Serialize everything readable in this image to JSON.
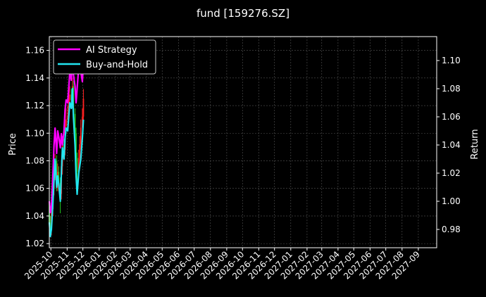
{
  "chart_data": {
    "type": "line",
    "title": "fund [159276.SZ]",
    "ylabel_left": "Price",
    "ylabel_right": "Return",
    "x_ticks": [
      "2025-10",
      "2025-11",
      "2025-12",
      "2026-01",
      "2026-02",
      "2026-03",
      "2026-04",
      "2026-05",
      "2026-06",
      "2026-07",
      "2026-08",
      "2026-09",
      "2026-10",
      "2026-11",
      "2026-12",
      "2027-01",
      "2027-02",
      "2027-03",
      "2027-04",
      "2027-05",
      "2027-06",
      "2027-07",
      "2027-08",
      "2027-09"
    ],
    "y_left_ticks": [
      "1.02",
      "1.04",
      "1.06",
      "1.08",
      "1.10",
      "1.12",
      "1.14",
      "1.16"
    ],
    "y_right_ticks": [
      "0.98",
      "1.00",
      "1.02",
      "1.04",
      "1.06",
      "1.08",
      "1.10"
    ],
    "ylim_left": [
      1.017,
      1.17
    ],
    "ylim_right": [
      0.967,
      1.117
    ],
    "xlim": [
      "2025-09-28",
      "2027-10-06"
    ],
    "grid": true,
    "legend_position": "upper-left",
    "colors": {
      "ai_strategy": "#ff00ff",
      "buy_and_hold": "#22e5f0",
      "up_candle": "#ff2020",
      "down_candle": "#22c722",
      "grid": "#555555"
    },
    "series": [
      {
        "name": "AI Strategy",
        "axis": "right",
        "color": "#ff00ff",
        "x": [
          "2025-09-28",
          "2025-09-30",
          "2025-10-02",
          "2025-10-05",
          "2025-10-07",
          "2025-10-09",
          "2025-10-12",
          "2025-10-14",
          "2025-10-16",
          "2025-10-19",
          "2025-10-21",
          "2025-10-23",
          "2025-10-26",
          "2025-10-28",
          "2025-10-30",
          "2025-11-02",
          "2025-11-04",
          "2025-11-06",
          "2025-11-09",
          "2025-11-11",
          "2025-11-13",
          "2025-11-16",
          "2025-11-18",
          "2025-11-20",
          "2025-11-23",
          "2025-11-25",
          "2025-11-27",
          "2025-11-30",
          "2025-12-02"
        ],
        "values": [
          1.0,
          0.992,
          0.996,
          1.02,
          1.04,
          1.052,
          1.034,
          1.05,
          1.046,
          1.038,
          1.048,
          1.04,
          1.05,
          1.065,
          1.072,
          1.07,
          1.08,
          1.092,
          1.086,
          1.1,
          1.09,
          1.082,
          1.07,
          1.08,
          1.095,
          1.098,
          1.092,
          1.085,
          1.098
        ]
      },
      {
        "name": "Buy-and-Hold",
        "axis": "right",
        "color": "#22e5f0",
        "x": [
          "2025-09-28",
          "2025-09-30",
          "2025-10-02",
          "2025-10-05",
          "2025-10-07",
          "2025-10-09",
          "2025-10-12",
          "2025-10-14",
          "2025-10-16",
          "2025-10-19",
          "2025-10-21",
          "2025-10-23",
          "2025-10-26",
          "2025-10-28",
          "2025-10-30",
          "2025-11-02",
          "2025-11-04",
          "2025-11-06",
          "2025-11-09",
          "2025-11-11",
          "2025-11-13",
          "2025-11-16",
          "2025-11-18",
          "2025-11-20",
          "2025-11-23",
          "2025-11-25",
          "2025-11-27",
          "2025-11-30",
          "2025-12-02"
        ],
        "values": [
          0.985,
          0.975,
          0.98,
          1.0,
          1.015,
          1.03,
          1.01,
          1.018,
          1.012,
          1.0,
          1.02,
          1.038,
          1.03,
          1.045,
          1.052,
          1.05,
          1.06,
          1.07,
          1.066,
          1.08,
          1.06,
          1.04,
          1.018,
          1.005,
          1.02,
          1.025,
          1.03,
          1.045,
          1.058
        ]
      }
    ],
    "candles": {
      "axis": "left",
      "x": [
        "2025-09-28",
        "2025-09-30",
        "2025-10-02",
        "2025-10-05",
        "2025-10-07",
        "2025-10-09",
        "2025-10-12",
        "2025-10-14",
        "2025-10-16",
        "2025-10-19",
        "2025-10-21",
        "2025-10-23",
        "2025-10-26",
        "2025-10-28",
        "2025-10-30",
        "2025-11-02",
        "2025-11-04",
        "2025-11-06",
        "2025-11-09",
        "2025-11-11",
        "2025-11-13",
        "2025-11-16",
        "2025-11-18",
        "2025-11-20",
        "2025-11-23",
        "2025-11-25",
        "2025-11-27",
        "2025-11-30",
        "2025-12-02"
      ],
      "open": [
        1.05,
        1.035,
        1.03,
        1.045,
        1.06,
        1.07,
        1.08,
        1.062,
        1.072,
        1.064,
        1.056,
        1.076,
        1.092,
        1.088,
        1.105,
        1.11,
        1.112,
        1.124,
        1.128,
        1.124,
        1.134,
        1.114,
        1.1,
        1.082,
        1.072,
        1.082,
        1.092,
        1.104,
        1.112
      ],
      "close": [
        1.035,
        1.03,
        1.045,
        1.06,
        1.07,
        1.08,
        1.062,
        1.072,
        1.064,
        1.056,
        1.076,
        1.092,
        1.088,
        1.105,
        1.11,
        1.112,
        1.124,
        1.128,
        1.124,
        1.134,
        1.114,
        1.1,
        1.082,
        1.072,
        1.082,
        1.092,
        1.104,
        1.112,
        1.125
      ],
      "high": [
        1.056,
        1.04,
        1.05,
        1.065,
        1.076,
        1.085,
        1.084,
        1.078,
        1.076,
        1.068,
        1.08,
        1.098,
        1.096,
        1.11,
        1.118,
        1.12,
        1.13,
        1.134,
        1.132,
        1.14,
        1.138,
        1.118,
        1.104,
        1.086,
        1.088,
        1.098,
        1.11,
        1.118,
        1.132
      ],
      "low": [
        1.03,
        1.025,
        1.026,
        1.04,
        1.055,
        1.066,
        1.058,
        1.058,
        1.06,
        1.042,
        1.052,
        1.07,
        1.084,
        1.084,
        1.1,
        1.104,
        1.108,
        1.118,
        1.118,
        1.118,
        1.11,
        1.096,
        1.078,
        1.064,
        1.068,
        1.078,
        1.088,
        1.1,
        1.108
      ]
    }
  }
}
